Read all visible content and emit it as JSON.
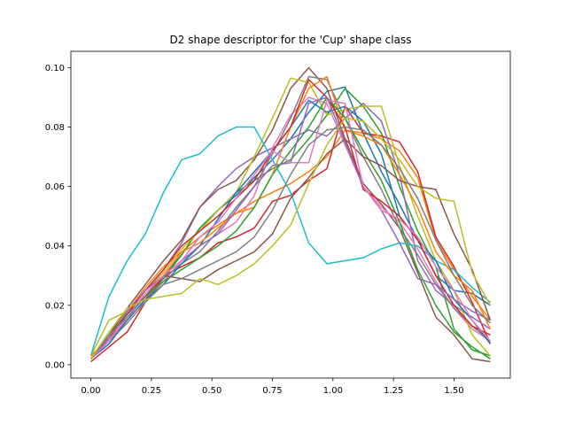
{
  "chart_data": {
    "type": "line",
    "title": "D2 shape descriptor for the 'Cup' shape class",
    "xlabel": "",
    "ylabel": "",
    "xlim": [
      -0.0825,
      1.7325
    ],
    "ylim": [
      -0.0045,
      0.1055
    ],
    "xticks": [
      0.0,
      0.25,
      0.5,
      0.75,
      1.0,
      1.25,
      1.5
    ],
    "xtick_labels": [
      "0.00",
      "0.25",
      "0.50",
      "0.75",
      "1.00",
      "1.25",
      "1.50"
    ],
    "yticks": [
      0.0,
      0.02,
      0.04,
      0.06,
      0.08,
      0.1
    ],
    "ytick_labels": [
      "0.00",
      "0.02",
      "0.04",
      "0.06",
      "0.08",
      "0.10"
    ],
    "grid": false,
    "legend": "none",
    "x": [
      0.0,
      0.075,
      0.15,
      0.225,
      0.3,
      0.375,
      0.45,
      0.525,
      0.6,
      0.675,
      0.75,
      0.825,
      0.9,
      0.975,
      1.05,
      1.125,
      1.2,
      1.275,
      1.35,
      1.425,
      1.5,
      1.575,
      1.65
    ],
    "series": [
      {
        "color": "#1f77b4",
        "values": [
          0.002,
          0.008,
          0.016,
          0.023,
          0.03,
          0.037,
          0.046,
          0.052,
          0.057,
          0.063,
          0.069,
          0.076,
          0.085,
          0.092,
          0.0935,
          0.078,
          0.065,
          0.054,
          0.042,
          0.03,
          0.025,
          0.024,
          0.02
        ]
      },
      {
        "color": "#ff7f0e",
        "values": [
          0.002,
          0.009,
          0.015,
          0.022,
          0.03,
          0.038,
          0.043,
          0.047,
          0.051,
          0.055,
          0.058,
          0.061,
          0.065,
          0.07,
          0.079,
          0.078,
          0.076,
          0.072,
          0.063,
          0.042,
          0.032,
          0.023,
          0.015
        ]
      },
      {
        "color": "#2ca02c",
        "values": [
          0.002,
          0.008,
          0.015,
          0.022,
          0.029,
          0.037,
          0.046,
          0.052,
          0.058,
          0.062,
          0.066,
          0.069,
          0.076,
          0.084,
          0.093,
          0.087,
          0.078,
          0.06,
          0.045,
          0.033,
          0.012,
          0.005,
          0.003
        ]
      },
      {
        "color": "#d62728",
        "values": [
          0.001,
          0.006,
          0.011,
          0.021,
          0.03,
          0.033,
          0.036,
          0.041,
          0.043,
          0.046,
          0.055,
          0.057,
          0.062,
          0.066,
          0.087,
          0.078,
          0.077,
          0.075,
          0.065,
          0.043,
          0.033,
          0.021,
          0.007
        ]
      },
      {
        "color": "#9467bd",
        "values": [
          0.002,
          0.009,
          0.018,
          0.025,
          0.032,
          0.041,
          0.053,
          0.06,
          0.066,
          0.07,
          0.073,
          0.076,
          0.079,
          0.077,
          0.083,
          0.088,
          0.082,
          0.064,
          0.035,
          0.025,
          0.02,
          0.016,
          0.012
        ]
      },
      {
        "color": "#8c564b",
        "values": [
          0.002,
          0.01,
          0.019,
          0.027,
          0.035,
          0.042,
          0.053,
          0.059,
          0.062,
          0.069,
          0.079,
          0.093,
          0.1,
          0.093,
          0.076,
          0.061,
          0.054,
          0.046,
          0.031,
          0.016,
          0.01,
          0.002,
          0.001
        ]
      },
      {
        "color": "#e377c2",
        "values": [
          0.002,
          0.008,
          0.015,
          0.022,
          0.028,
          0.035,
          0.04,
          0.044,
          0.048,
          0.057,
          0.073,
          0.084,
          0.09,
          0.088,
          0.074,
          0.06,
          0.053,
          0.048,
          0.039,
          0.028,
          0.019,
          0.012,
          0.008
        ]
      },
      {
        "color": "#7f7f7f",
        "values": [
          0.002,
          0.008,
          0.014,
          0.021,
          0.029,
          0.034,
          0.038,
          0.045,
          0.053,
          0.06,
          0.071,
          0.083,
          0.097,
          0.096,
          0.083,
          0.07,
          0.059,
          0.046,
          0.037,
          0.027,
          0.019,
          0.013,
          0.008
        ]
      },
      {
        "color": "#bcbd22",
        "values": [
          0.003,
          0.015,
          0.018,
          0.025,
          0.031,
          0.039,
          0.045,
          0.052,
          0.058,
          0.07,
          0.083,
          0.0965,
          0.095,
          0.084,
          0.086,
          0.087,
          0.087,
          0.067,
          0.05,
          0.035,
          0.025,
          0.01,
          0.003
        ]
      },
      {
        "color": "#17becf",
        "values": [
          0.003,
          0.023,
          0.035,
          0.044,
          0.058,
          0.069,
          0.071,
          0.077,
          0.08,
          0.08,
          0.069,
          0.058,
          0.041,
          0.034,
          0.035,
          0.036,
          0.039,
          0.041,
          0.04,
          0.035,
          0.032,
          0.026,
          0.021
        ]
      },
      {
        "color": "#1f77b4",
        "values": [
          0.002,
          0.007,
          0.015,
          0.022,
          0.027,
          0.034,
          0.04,
          0.049,
          0.058,
          0.065,
          0.072,
          0.08,
          0.089,
          0.085,
          0.087,
          0.082,
          0.071,
          0.05,
          0.042,
          0.035,
          0.022,
          0.015,
          0.007
        ]
      },
      {
        "color": "#ff7f0e",
        "values": [
          0.003,
          0.009,
          0.018,
          0.026,
          0.033,
          0.038,
          0.041,
          0.046,
          0.051,
          0.053,
          0.064,
          0.08,
          0.093,
          0.097,
          0.079,
          0.077,
          0.074,
          0.064,
          0.053,
          0.038,
          0.03,
          0.025,
          0.012
        ]
      },
      {
        "color": "#2ca02c",
        "values": [
          0.002,
          0.01,
          0.017,
          0.023,
          0.028,
          0.032,
          0.036,
          0.04,
          0.045,
          0.053,
          0.064,
          0.072,
          0.08,
          0.09,
          0.083,
          0.072,
          0.062,
          0.048,
          0.032,
          0.02,
          0.011,
          0.006,
          0.002
        ]
      },
      {
        "color": "#d62728",
        "values": [
          0.002,
          0.009,
          0.017,
          0.025,
          0.032,
          0.04,
          0.045,
          0.05,
          0.056,
          0.062,
          0.072,
          0.08,
          0.096,
          0.09,
          0.08,
          0.059,
          0.055,
          0.05,
          0.042,
          0.03,
          0.02,
          0.013,
          0.01
        ]
      },
      {
        "color": "#9467bd",
        "values": [
          0.002,
          0.009,
          0.018,
          0.025,
          0.03,
          0.035,
          0.04,
          0.044,
          0.052,
          0.06,
          0.067,
          0.068,
          0.088,
          0.09,
          0.075,
          0.06,
          0.052,
          0.041,
          0.029,
          0.027,
          0.022,
          0.018,
          0.015
        ]
      },
      {
        "color": "#8c564b",
        "values": [
          0.002,
          0.01,
          0.017,
          0.023,
          0.03,
          0.029,
          0.028,
          0.032,
          0.035,
          0.038,
          0.044,
          0.056,
          0.063,
          0.071,
          0.076,
          0.07,
          0.067,
          0.062,
          0.06,
          0.059,
          0.044,
          0.032,
          0.015
        ]
      },
      {
        "color": "#e377c2",
        "values": [
          0.002,
          0.008,
          0.016,
          0.024,
          0.03,
          0.035,
          0.043,
          0.048,
          0.056,
          0.064,
          0.072,
          0.068,
          0.068,
          0.089,
          0.088,
          0.06,
          0.052,
          0.049,
          0.043,
          0.033,
          0.025,
          0.015,
          0.008
        ]
      },
      {
        "color": "#7f7f7f",
        "values": [
          0.002,
          0.01,
          0.016,
          0.021,
          0.027,
          0.029,
          0.032,
          0.035,
          0.038,
          0.043,
          0.052,
          0.064,
          0.074,
          0.079,
          0.08,
          0.079,
          0.074,
          0.066,
          0.056,
          0.042,
          0.03,
          0.02,
          0.014
        ]
      },
      {
        "color": "#bcbd22",
        "values": [
          0.002,
          0.011,
          0.019,
          0.022,
          0.023,
          0.024,
          0.029,
          0.027,
          0.03,
          0.034,
          0.04,
          0.047,
          0.061,
          0.074,
          0.083,
          0.082,
          0.076,
          0.069,
          0.06,
          0.056,
          0.055,
          0.031,
          0.02
        ]
      }
    ]
  }
}
